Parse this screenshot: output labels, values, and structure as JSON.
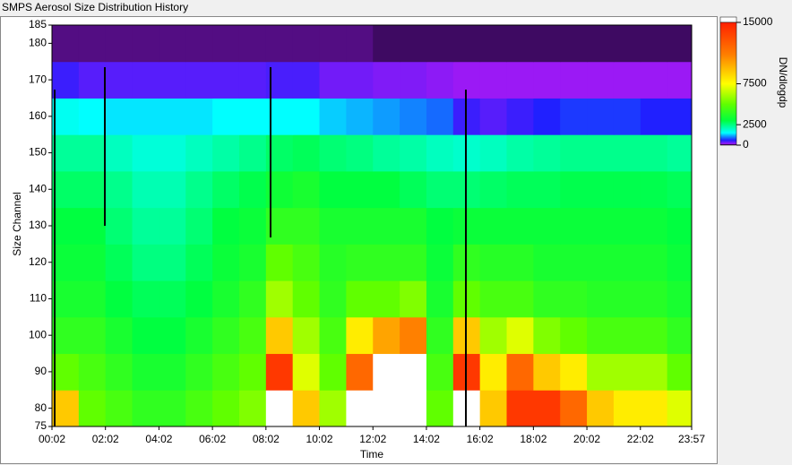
{
  "chart_data": {
    "type": "heatmap",
    "title": "SMPS Aerosol Size Distribution History",
    "xlabel": "Time",
    "ylabel": "Size Channel",
    "colorbar_label": "DN/dlogdp",
    "xlim": [
      2,
      1437
    ],
    "ylim": [
      75,
      185
    ],
    "xticks": [
      {
        "value": 2,
        "label": "00:02"
      },
      {
        "value": 122,
        "label": "02:02"
      },
      {
        "value": 242,
        "label": "04:02"
      },
      {
        "value": 362,
        "label": "06:02"
      },
      {
        "value": 482,
        "label": "08:02"
      },
      {
        "value": 602,
        "label": "10:02"
      },
      {
        "value": 722,
        "label": "12:02"
      },
      {
        "value": 842,
        "label": "14:02"
      },
      {
        "value": 962,
        "label": "16:02"
      },
      {
        "value": 1082,
        "label": "18:02"
      },
      {
        "value": 1202,
        "label": "20:02"
      },
      {
        "value": 1322,
        "label": "22:02"
      },
      {
        "value": 1437,
        "label": "23:57"
      }
    ],
    "yticks": [
      75,
      80,
      90,
      100,
      110,
      120,
      130,
      140,
      150,
      160,
      170,
      180,
      185
    ],
    "x_bins": [
      2,
      62,
      122,
      182,
      242,
      302,
      362,
      422,
      482,
      542,
      602,
      662,
      722,
      782,
      842,
      902,
      962,
      1022,
      1082,
      1142,
      1202,
      1262,
      1322,
      1382,
      1437
    ],
    "y_bins": [
      75,
      85,
      95,
      105,
      115,
      125,
      135,
      145,
      155,
      165,
      175,
      185
    ],
    "z": [
      [
        9000,
        5000,
        4500,
        4000,
        4000,
        4500,
        5000,
        5500,
        16000,
        9000,
        6000,
        16000,
        16000,
        16000,
        5000,
        16000,
        9000,
        14000,
        14000,
        12000,
        9000,
        8000,
        8000,
        7000
      ],
      [
        5000,
        4500,
        4000,
        3500,
        3500,
        4000,
        4500,
        5000,
        14000,
        7000,
        5000,
        12000,
        16000,
        16000,
        4500,
        14000,
        8000,
        12000,
        9000,
        8000,
        6000,
        6000,
        6000,
        5000
      ],
      [
        4000,
        4000,
        3500,
        3000,
        3000,
        3500,
        4000,
        4500,
        9000,
        6000,
        4500,
        8000,
        10000,
        11000,
        4000,
        9000,
        6000,
        7000,
        5500,
        5000,
        4500,
        4500,
        4500,
        4000
      ],
      [
        3500,
        3500,
        3000,
        2800,
        2800,
        3000,
        3500,
        4000,
        6000,
        5000,
        4000,
        5000,
        5000,
        5500,
        3500,
        5000,
        4500,
        4500,
        4000,
        4000,
        3800,
        3800,
        3800,
        3500
      ],
      [
        3200,
        3200,
        2800,
        2500,
        2500,
        2800,
        3200,
        3500,
        5000,
        4500,
        3800,
        4000,
        4000,
        4000,
        3200,
        4000,
        3800,
        3800,
        3500,
        3500,
        3500,
        3500,
        3500,
        3200
      ],
      [
        3000,
        3000,
        2600,
        2300,
        2300,
        2600,
        3000,
        3200,
        4000,
        4000,
        3500,
        3500,
        3500,
        3500,
        3000,
        3200,
        3200,
        3200,
        3200,
        3200,
        3200,
        3200,
        3200,
        3000
      ],
      [
        2700,
        2700,
        2400,
        2100,
        2100,
        2400,
        2700,
        2900,
        3300,
        3500,
        3000,
        3000,
        3000,
        2800,
        2600,
        2600,
        2700,
        2800,
        2800,
        2900,
        2900,
        2900,
        2900,
        2800
      ],
      [
        2300,
        2300,
        2000,
        1800,
        1800,
        2000,
        2200,
        2400,
        2700,
        2800,
        2600,
        2500,
        2300,
        2200,
        2000,
        1900,
        2000,
        2200,
        2300,
        2400,
        2400,
        2400,
        2400,
        2300
      ],
      [
        1600,
        1500,
        1400,
        1400,
        1400,
        1400,
        1500,
        1500,
        1500,
        1500,
        1300,
        1200,
        1100,
        1000,
        900,
        500,
        400,
        500,
        600,
        700,
        700,
        700,
        600,
        600
      ],
      [
        500,
        400,
        400,
        400,
        400,
        400,
        400,
        400,
        450,
        450,
        300,
        300,
        250,
        250,
        200,
        150,
        150,
        150,
        150,
        150,
        150,
        150,
        150,
        150
      ],
      [
        80,
        80,
        80,
        80,
        80,
        80,
        80,
        80,
        80,
        80,
        80,
        80,
        60,
        60,
        60,
        60,
        60,
        60,
        60,
        60,
        60,
        60,
        60,
        60
      ]
    ],
    "clim": [
      0,
      15000
    ],
    "cticks": [
      0,
      2500,
      7500,
      15000
    ],
    "colorscale": [
      [
        0,
        "#000000"
      ],
      [
        150,
        "#9b19f5"
      ],
      [
        600,
        "#2020ff"
      ],
      [
        1500,
        "#00ffff"
      ],
      [
        3000,
        "#00ff40"
      ],
      [
        5000,
        "#60ff00"
      ],
      [
        7500,
        "#ffff00"
      ],
      [
        11000,
        "#ff8000"
      ],
      [
        15000,
        "#ff2000"
      ]
    ],
    "overflow_color": "#ffffff"
  }
}
